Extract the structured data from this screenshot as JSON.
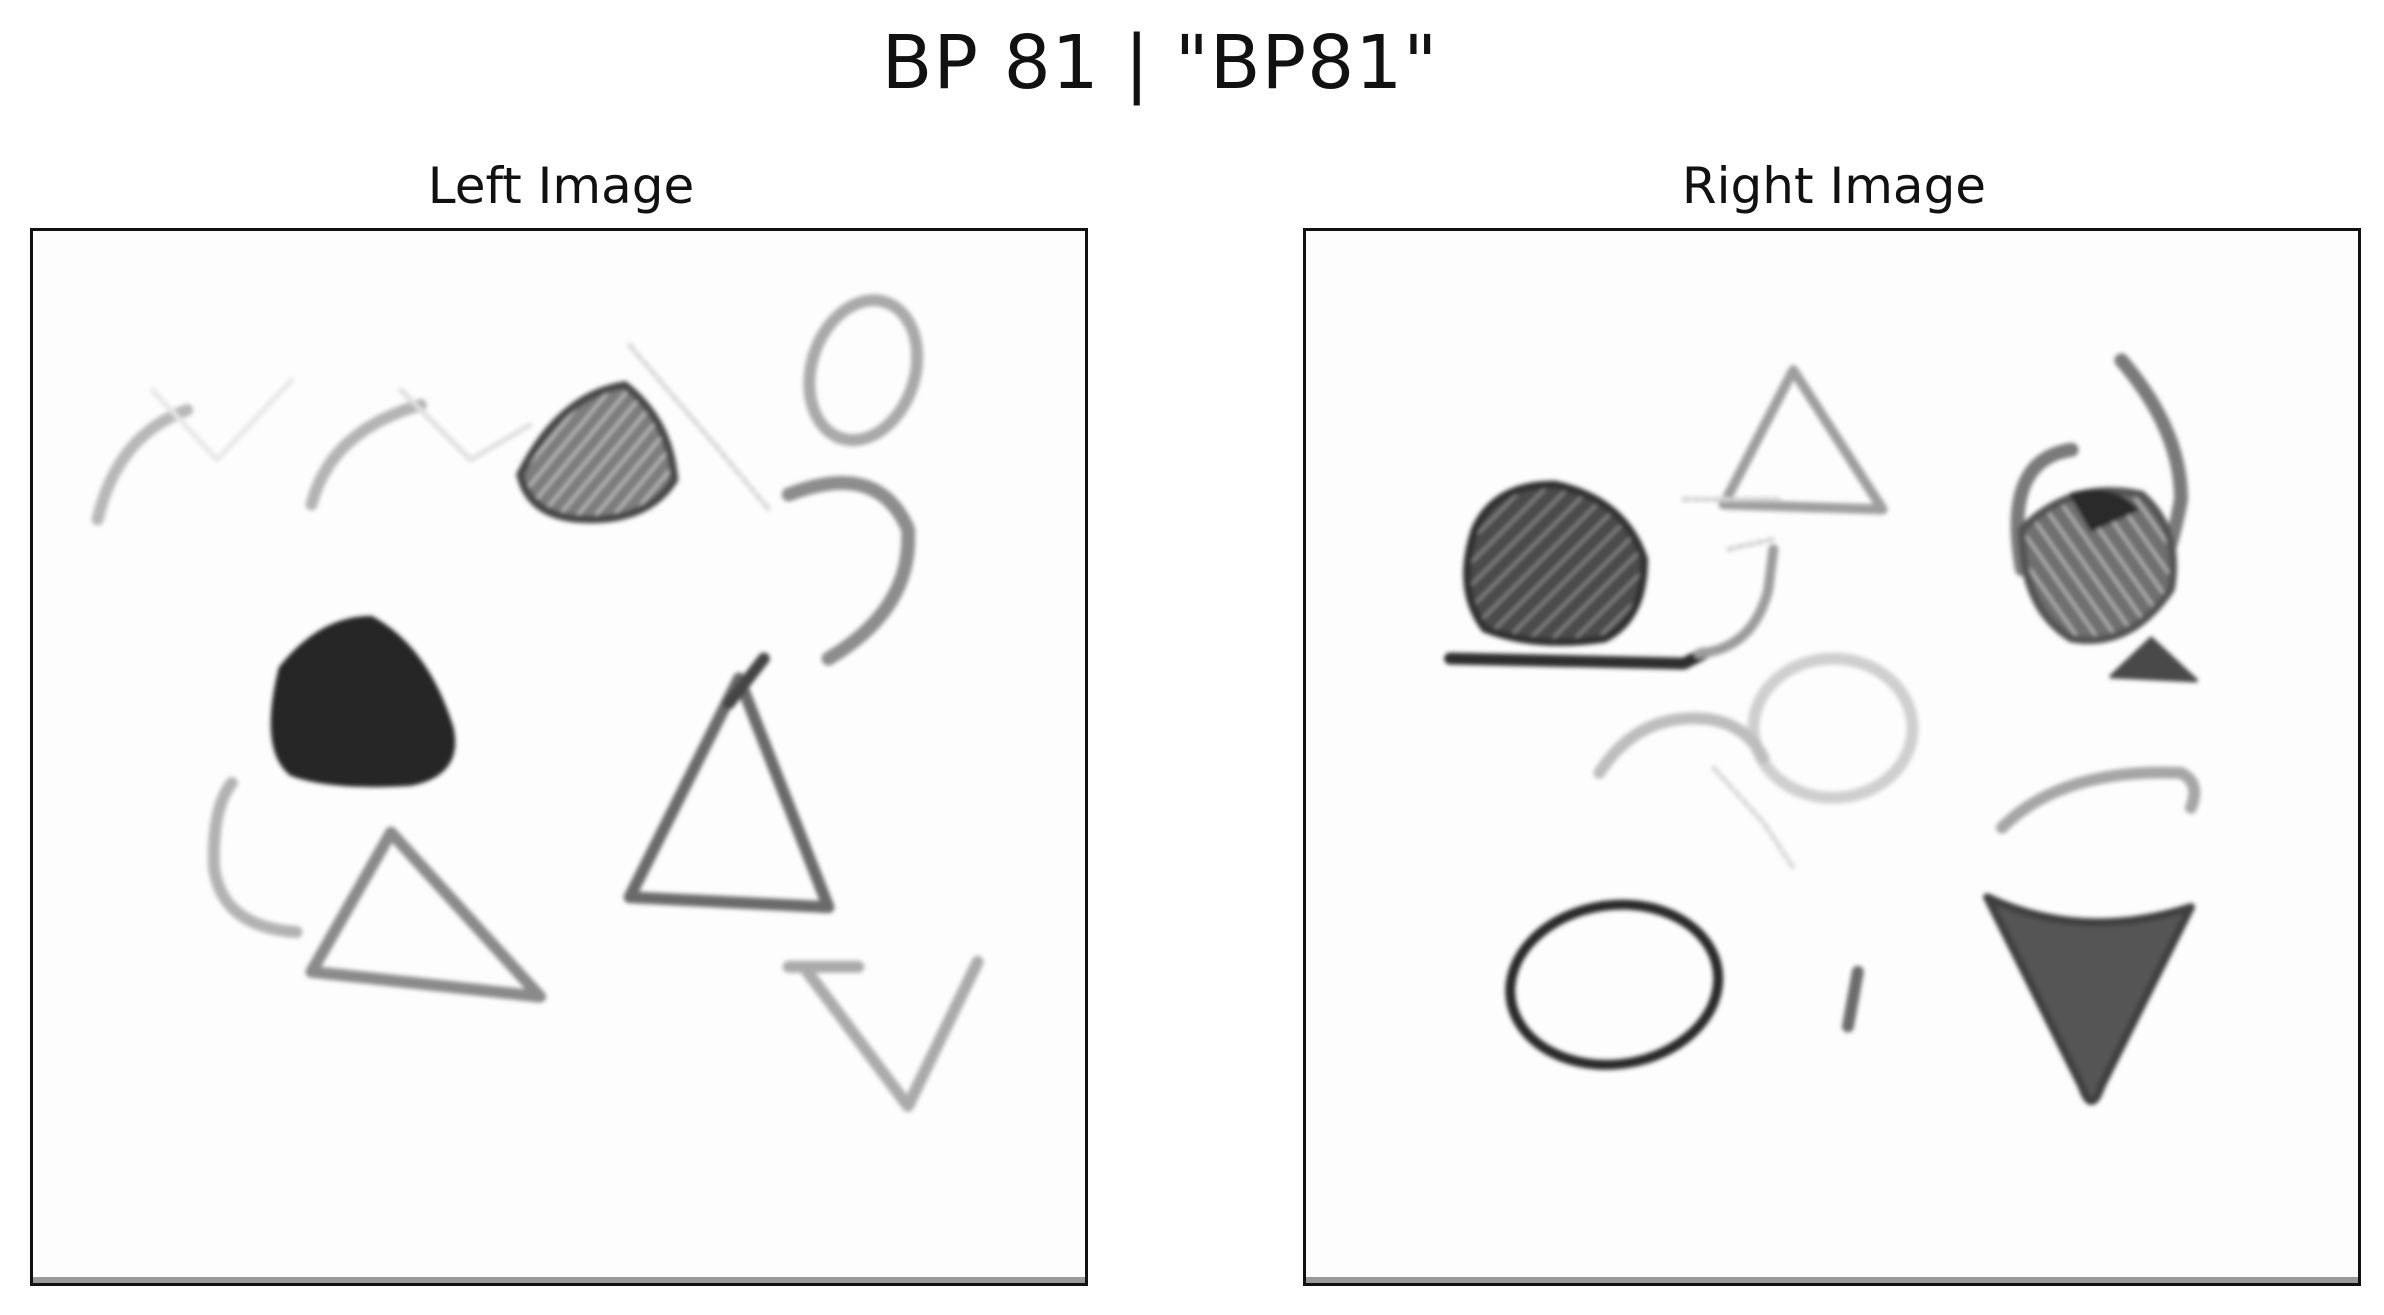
{
  "figure": {
    "title": "BP 81 | \"BP81\""
  },
  "panels": [
    {
      "title": "Left Image"
    },
    {
      "title": "Right Image"
    }
  ]
}
